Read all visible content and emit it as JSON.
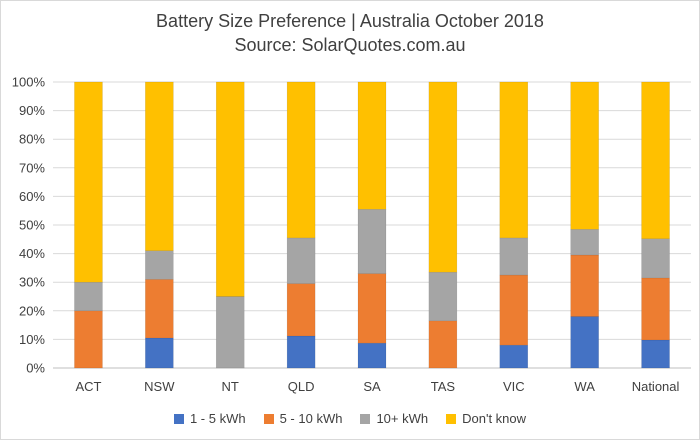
{
  "chart_data": {
    "type": "bar",
    "stacked": true,
    "title": "Battery Size Preference  | Australia October 2018",
    "subtitle": "Source: SolarQuotes.com.au",
    "categories": [
      "ACT",
      "NSW",
      "NT",
      "QLD",
      "SA",
      "TAS",
      "VIC",
      "WA",
      "National"
    ],
    "series": [
      {
        "name": "1 - 5 kWh",
        "color": "#4472c4",
        "values": [
          0,
          10.5,
          0,
          11.2,
          8.7,
          0,
          8.0,
          18.0,
          9.8
        ]
      },
      {
        "name": "5 - 10 kWh",
        "color": "#ed7d31",
        "values": [
          20.0,
          20.5,
          0,
          18.3,
          24.3,
          16.5,
          24.5,
          21.5,
          21.7
        ]
      },
      {
        "name": "10+ kWh",
        "color": "#a5a5a5",
        "values": [
          10.0,
          10.0,
          25.0,
          16.0,
          22.5,
          17.0,
          13.0,
          9.0,
          13.7
        ]
      },
      {
        "name": "Don't know",
        "color": "#ffc000",
        "values": [
          70.0,
          59.0,
          75.0,
          54.5,
          44.5,
          66.5,
          54.5,
          51.5,
          54.8
        ]
      }
    ],
    "ylim": [
      0,
      100
    ],
    "yticks": [
      "0%",
      "10%",
      "20%",
      "30%",
      "40%",
      "50%",
      "60%",
      "70%",
      "80%",
      "90%",
      "100%"
    ],
    "grid": true,
    "legend_position": "bottom"
  }
}
